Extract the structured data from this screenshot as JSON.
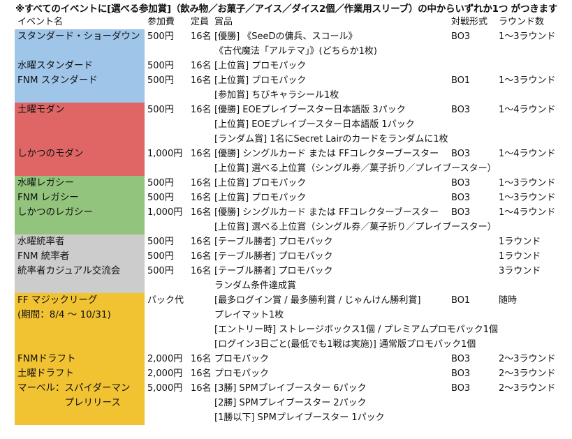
{
  "note": "※すべてのイベントに[選べる参加賞]（飲み物／お菓子／アイス／ダイス2個／作業用スリーブ）の中からいずれか1つ がつきます",
  "headers": {
    "event": "イベント名",
    "fee": "参加費",
    "capacity": "定員",
    "prize": "賞品",
    "format": "対戦形式",
    "rounds": "ラウンド数"
  },
  "colors": {
    "blue": "#9fc5e8",
    "red": "#e06666",
    "green": "#93c47d",
    "gray": "#cccccc",
    "gold": "#f1c232"
  },
  "rows": [
    {
      "event": "スタンダード・ショーダウン",
      "fee": "500円",
      "capacity": "16名",
      "prize": "[優勝] 《SeeDの傭兵、スコール》",
      "format": "BO3",
      "rounds": "1～3ラウンド"
    },
    {
      "event": "",
      "fee": "",
      "capacity": "",
      "prize": "《古代魔法「アルテマ」》(どちらか1枚)",
      "format": "",
      "rounds": ""
    },
    {
      "event": "水曜スタンダード",
      "fee": "500円",
      "capacity": "16名",
      "prize": "[上位賞] プロモパック",
      "format": "",
      "rounds": ""
    },
    {
      "event": "FNM スタンダード",
      "fee": "500円",
      "capacity": "16名",
      "prize": "[上位賞] プロモパック",
      "format": "BO1",
      "rounds": "1～3ラウンド"
    },
    {
      "event": "",
      "fee": "",
      "capacity": "",
      "prize": "[参加賞] ちびキャラシール1枚",
      "format": "",
      "rounds": ""
    },
    {
      "event": "土曜モダン",
      "fee": "500円",
      "capacity": "16名",
      "prize": "[優勝] EOEプレイブースター日本語版 3パック",
      "format": "BO3",
      "rounds": "1～4ラウンド"
    },
    {
      "event": "",
      "fee": "",
      "capacity": "",
      "prize": "[上位賞] EOEプレイブースター日本語版 1パック",
      "format": "",
      "rounds": ""
    },
    {
      "event": "",
      "fee": "",
      "capacity": "",
      "prize": "[ランダム賞] 1名にSecret Lairのカードをランダムに1枚",
      "format": "",
      "rounds": ""
    },
    {
      "event": "しかつのモダン",
      "fee": "1,000円",
      "capacity": "16名",
      "prize": "[優勝] シングルカード または FFコレクターブースター",
      "format": "BO3",
      "rounds": "1～4ラウンド"
    },
    {
      "event": "",
      "fee": "",
      "capacity": "",
      "prize": "[上位賞] 選べる上位賞（シングル券／菓子折り／プレイブースター）",
      "format": "",
      "rounds": ""
    },
    {
      "event": "水曜レガシー",
      "fee": "500円",
      "capacity": "16名",
      "prize": "[上位賞] プロモパック",
      "format": "BO3",
      "rounds": "1～3ラウンド"
    },
    {
      "event": "FNM レガシー",
      "fee": "500円",
      "capacity": "16名",
      "prize": "[上位賞] プロモパック",
      "format": "BO3",
      "rounds": "1～3ラウンド"
    },
    {
      "event": "しかつのレガシー",
      "fee": "1,000円",
      "capacity": "16名",
      "prize": "[優勝] シングルカード または FFコレクターブースター",
      "format": "BO3",
      "rounds": "1～4ラウンド"
    },
    {
      "event": "",
      "fee": "",
      "capacity": "",
      "prize": "[上位賞] 選べる上位賞（シングル券／菓子折り／プレイブースター）",
      "format": "",
      "rounds": ""
    },
    {
      "event": "水曜統率者",
      "fee": "500円",
      "capacity": "16名",
      "prize": "[テーブル勝者] プロモパック",
      "format": "",
      "rounds": "1ラウンド"
    },
    {
      "event": "FNM 統率者",
      "fee": "500円",
      "capacity": "16名",
      "prize": "[テーブル勝者] プロモパック",
      "format": "",
      "rounds": "1ラウンド"
    },
    {
      "event": "統率者カジュアル交流会",
      "fee": "500円",
      "capacity": "16名",
      "prize": "[テーブル勝者] プロモパック",
      "format": "",
      "rounds": "3ラウンド"
    },
    {
      "event": "",
      "fee": "",
      "capacity": "",
      "prize": "ランダム条件達成賞",
      "format": "",
      "rounds": ""
    },
    {
      "event": "FF マジックリーグ",
      "fee": "パック代",
      "capacity": "",
      "prize": "[最多ログイン賞 / 最多勝利賞 / じゃんけん勝利賞]",
      "format": "BO1",
      "rounds": "随時"
    },
    {
      "event": "(期間：8/4 ～ 10/31)",
      "fee": "",
      "capacity": "",
      "prize": "プレイマット1枚",
      "format": "",
      "rounds": ""
    },
    {
      "event": "",
      "fee": "",
      "capacity": "",
      "prize": "[エントリー時] ストレージボックス1個 / プレミアムプロモパック1個",
      "format": "",
      "rounds": ""
    },
    {
      "event": "",
      "fee": "",
      "capacity": "",
      "prize": "[ログイン3日ごと(最低でも1戦は実施)] 通常版プロモパック1個",
      "format": "",
      "rounds": ""
    },
    {
      "event": "FNMドラフト",
      "fee": "2,000円",
      "capacity": "16名",
      "prize": "プロモパック",
      "format": "BO3",
      "rounds": "2～3ラウンド"
    },
    {
      "event": "土曜ドラフト",
      "fee": "2,000円",
      "capacity": "16名",
      "prize": "プロモパック",
      "format": "BO3",
      "rounds": "2～3ラウンド"
    },
    {
      "event": "マーベル：スパイダーマン",
      "fee": "5,000円",
      "capacity": "16名",
      "prize": "[3勝] SPMプレイブースター 6パック",
      "format": "BO3",
      "rounds": "2～3ラウンド"
    },
    {
      "event": "　　　　　プレリリース",
      "fee": "",
      "capacity": "",
      "prize": "[2勝] SPMプレイブースター 2パック",
      "format": "",
      "rounds": ""
    },
    {
      "event": "",
      "fee": "",
      "capacity": "",
      "prize": "[1勝以下] SPMプレイブースター 1パック",
      "format": "",
      "rounds": ""
    }
  ]
}
